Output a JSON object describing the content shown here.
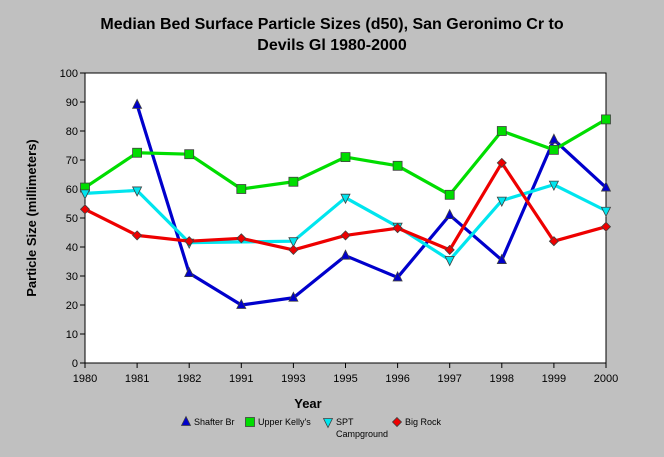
{
  "chart_data": {
    "type": "line",
    "title_line1": "Median Bed Surface Particle Sizes (d50), San Geronimo Cr to",
    "title_line2": "Devils Gl 1980-2000",
    "xlabel": "Year",
    "ylabel": "Particle Size (millimeters)",
    "categories": [
      "1980",
      "1981",
      "1982",
      "1991",
      "1993",
      "1995",
      "1996",
      "1997",
      "1998",
      "1999",
      "2000"
    ],
    "ylim": [
      0,
      100
    ],
    "yticks": [
      0,
      10,
      20,
      30,
      40,
      50,
      60,
      70,
      80,
      90,
      100
    ],
    "grid": false,
    "legend_position": "bottom",
    "series": [
      {
        "name": "Shafter Br",
        "color": "#0000cc",
        "marker": "triangle-up",
        "values": [
          null,
          89,
          31,
          20,
          22.5,
          37,
          29.5,
          51,
          35.5,
          77,
          60.5
        ]
      },
      {
        "name": "Upper Kelly's",
        "color": "#00dd00",
        "marker": "square",
        "values": [
          60.5,
          72.5,
          72,
          60,
          62.5,
          71,
          68,
          58,
          80,
          73.5,
          84
        ]
      },
      {
        "name": "SPT Campground",
        "name_line1": "SPT",
        "name_line2": "Campground",
        "color": "#00e5ee",
        "marker": "triangle-down",
        "values": [
          58.5,
          59.5,
          41.5,
          null,
          42,
          57,
          47,
          35.5,
          56,
          61.5,
          52.5
        ]
      },
      {
        "name": "Big Rock",
        "color": "#ee0000",
        "marker": "diamond",
        "values": [
          53,
          44,
          42,
          43,
          39,
          44,
          46.5,
          39,
          69,
          42,
          47
        ]
      }
    ]
  }
}
